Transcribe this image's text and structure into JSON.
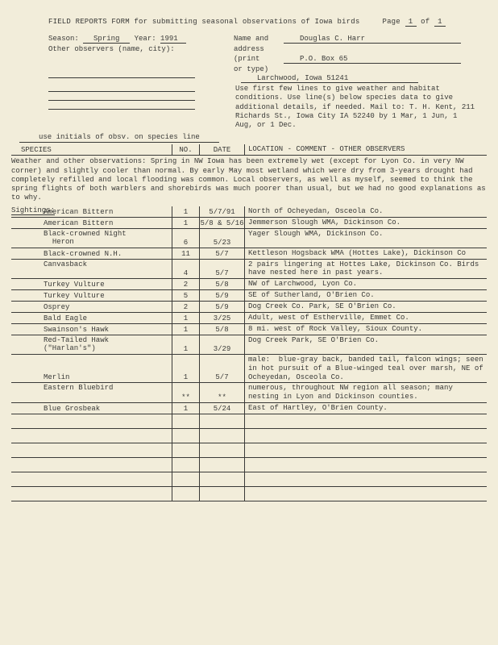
{
  "page": {
    "current": "1",
    "total": "1"
  },
  "title_prefix": "FIELD REPORTS FORM for submitting seasonal observations of Iowa birds",
  "page_label": "Page",
  "of_label": "of",
  "header": {
    "season_label": "Season:",
    "season": "Spring",
    "year_label": "Year:",
    "year": "1991",
    "name_label_1": "Name and",
    "name_label_2": "address",
    "name_label_3": "(print",
    "name_label_4": "or type)",
    "name": "Douglas C. Harr",
    "other_obs_label": "Other observers (name, city):",
    "addr1": "P.O. Box 65",
    "addr2": "Larchwood, Iowa 51241"
  },
  "instructions": "Use first few lines to give weather and habitat conditions. Use line(s) below species data to give additional details, if needed. Mail to: T. H. Kent, 211 Richards St., Iowa City IA 52240 by 1 Mar, 1 Jun, 1 Aug, or 1 Dec.",
  "initials_note": "use initials of obsv. on species line",
  "columns": {
    "species": "SPECIES",
    "no": "NO.",
    "date": "DATE",
    "loc": "LOCATION - COMMENT - OTHER OBSERVERS"
  },
  "weather_label": "Weather and other observations:",
  "weather_text": "Spring in NW Iowa has been extremely wet (except  for Lyon Co. in very NW corner) and slightly cooler than normal.  By early May most wetland which were dry from 3-years drought had completely refilled and local flooding was common.  Local observers, as well as myself, seemed to think the spring flights of both warblers and shorebirds was much poorer than usual, but we had no good explanations as to why.",
  "sightings_label": "Sightings:",
  "rows": [
    {
      "species": "American Bittern",
      "no": "1",
      "date": "5/7/91",
      "loc": "North of Ocheyedan, Osceola Co.",
      "h": 1
    },
    {
      "species": "American Bittern",
      "no": "1",
      "date": "5/8 & 5/16",
      "loc": "Jemmerson Slough WMA, Dickinson Co.",
      "h": 1
    },
    {
      "species": "Black-crowned Night\n  Heron",
      "no": "6",
      "date": "5/23",
      "loc": "Yager Slough WMA, Dickinson Co.",
      "h": 2
    },
    {
      "species": "Black-crowned N.H.",
      "no": "11",
      "date": "5/7",
      "loc": "Kettleson Hogsback WMA (Hottes Lake), Dickinson Co",
      "h": 1
    },
    {
      "species": "Canvasback",
      "no": "4",
      "date": "5/7",
      "loc": "2 pairs lingering at Hottes Lake, Dickinson Co. Birds have nested here in past years.",
      "h": 2
    },
    {
      "species": "Turkey Vulture",
      "no": "2",
      "date": "5/8",
      "loc": "NW of Larchwood, Lyon Co.",
      "h": 1
    },
    {
      "species": "Turkey Vulture",
      "no": "5",
      "date": "5/9",
      "loc": "SE of Sutherland, O'Brien Co.",
      "h": 1
    },
    {
      "species": "Osprey",
      "no": "2",
      "date": "5/9",
      "loc": "Dog Creek Co. Park, SE O'Brien Co.",
      "h": 1
    },
    {
      "species": "Bald Eagle",
      "no": "1",
      "date": "3/25",
      "loc": "Adult, west of Estherville, Emmet Co.",
      "h": 1
    },
    {
      "species": "Swainson's Hawk",
      "no": "1",
      "date": "5/8",
      "loc": "8 mi. west of Rock Valley, Sioux County.",
      "h": 1
    },
    {
      "species": "Red-Tailed Hawk\n(\"Harlan's\")",
      "no": "1",
      "date": "3/29",
      "loc": "Dog Creek Park, SE O'Brien Co.",
      "h": 2
    },
    {
      "species": "Merlin",
      "no": "1",
      "date": "5/7",
      "loc": "male:  blue-gray back, banded tail, falcon wings; seen in hot pursuit of a Blue-winged teal over marsh, NE of Ocheyedan, Osceola Co.",
      "h": 3
    },
    {
      "species": "Eastern Bluebird",
      "no": "**",
      "date": "**",
      "loc": "numerous, throughout NW region all season; many nesting in Lyon and Dickinson counties.",
      "h": 2
    },
    {
      "species": "Blue Grosbeak",
      "no": "1",
      "date": "5/24",
      "loc": "East of Hartley, O'Brien County.",
      "h": 1
    }
  ],
  "blank_rows": 6,
  "colors": {
    "bg": "#f2edda",
    "ink": "#3a3a38"
  }
}
